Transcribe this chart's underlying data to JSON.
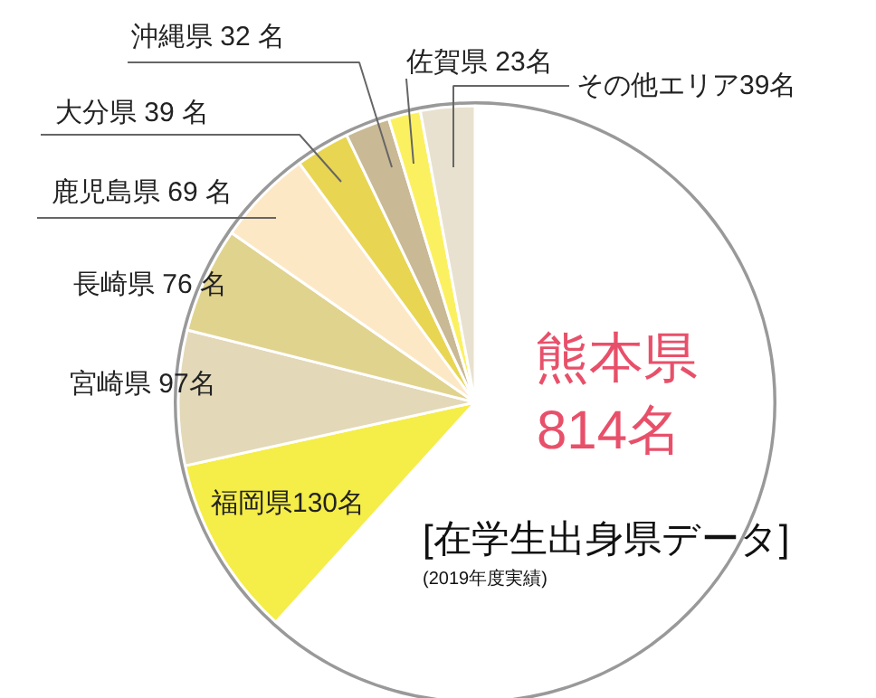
{
  "chart_data": {
    "type": "pie",
    "title": "[在学生出身県データ]",
    "annotations": [
      "(2019年度実績)"
    ],
    "categories": [
      "熊本県",
      "福岡県",
      "宮崎県",
      "長崎県",
      "鹿児島県",
      "大分県",
      "沖縄県",
      "佐賀県",
      "その他エリア"
    ],
    "values": [
      814,
      130,
      97,
      76,
      69,
      39,
      32,
      23,
      39
    ],
    "colors": [
      "#ffffff",
      "#f5ed48",
      "#e3d8b8",
      "#e0d38e",
      "#fde8c6",
      "#e8d552",
      "#c9b994",
      "#fbf160",
      "#e8e1cf"
    ],
    "value_labels": [
      "814名",
      "130名",
      " 97名",
      " 76 名",
      " 69 名",
      " 39 名",
      " 32 名",
      " 23名",
      "39名"
    ]
  }
}
